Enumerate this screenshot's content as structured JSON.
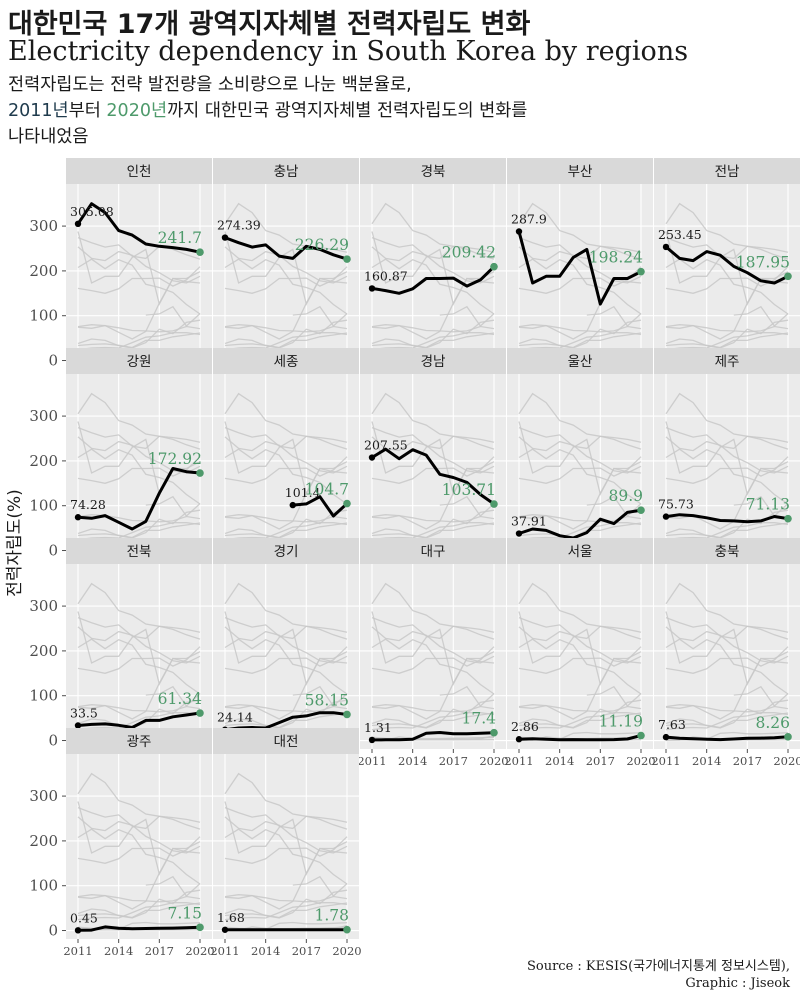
{
  "title_ko": "대한민국 17개 광역지자체별 전력자립도 변화",
  "title_en": "Electricity dependency in South Korea by regions",
  "subtitle": {
    "line1": "전력자립도는 전략 발전량을 소비량으로 나눈 백분율로,",
    "year_start": "2011년",
    "word_from": "부터",
    "year_end": "2020년",
    "line2_rest": "까지 대한민국 광역지자체별 전력자립도의 변화를",
    "line3": "나타내었음"
  },
  "caption": {
    "line1": "Source : KESIS(국가에너지통계 정보시스템),",
    "line2": "Graphic : Jiseok"
  },
  "colors": {
    "panel_bg": "#ebebeb",
    "strip_bg": "#d9d9d9",
    "grid": "#ffffff",
    "highlight_line": "#000000",
    "context_lines": "#c8c8c8",
    "end_point": "#4e9a6b",
    "end_label": "#4e9a6b"
  },
  "chart_data": {
    "type": "line",
    "facets": true,
    "ylabel": "전력자립도(%)",
    "xlabel": "",
    "x": [
      2011,
      2012,
      2013,
      2014,
      2015,
      2016,
      2017,
      2018,
      2019,
      2020
    ],
    "x_ticks": [
      2011,
      2014,
      2017,
      2020
    ],
    "y_ticks": [
      0,
      100,
      200,
      300
    ],
    "ylim": [
      -10,
      385
    ],
    "grid": true,
    "series": [
      {
        "name": "인천",
        "values": [
          305.08,
          350,
          330,
          290,
          280,
          260,
          255,
          252,
          248,
          241.7
        ],
        "first_label": "305.08",
        "last_label": "241.7"
      },
      {
        "name": "충남",
        "values": [
          274.39,
          263,
          253,
          258,
          233,
          228,
          255,
          248,
          236,
          226.29
        ],
        "first_label": "274.39",
        "last_label": "226.29"
      },
      {
        "name": "경북",
        "values": [
          160.87,
          156,
          150,
          160,
          183,
          183,
          184,
          166,
          180,
          209.42
        ],
        "first_label": "160.87",
        "last_label": "209.42"
      },
      {
        "name": "부산",
        "values": [
          287.9,
          173,
          188,
          188,
          230,
          248,
          126,
          183,
          183,
          198.24
        ],
        "first_label": "287.9",
        "last_label": "198.24"
      },
      {
        "name": "전남",
        "values": [
          253.45,
          228,
          223,
          243,
          235,
          210,
          196,
          178,
          173,
          187.95
        ],
        "first_label": "253.45",
        "last_label": "187.95"
      },
      {
        "name": "강원",
        "values": [
          74.28,
          72,
          78,
          63,
          48,
          65,
          128,
          183,
          176,
          172.92
        ],
        "first_label": "74.28",
        "last_label": "172.92"
      },
      {
        "name": "세종",
        "values": [
          null,
          null,
          null,
          null,
          null,
          101.4,
          104,
          120,
          77,
          104.7
        ],
        "first_label": "101.4",
        "last_label": "104.7"
      },
      {
        "name": "경남",
        "values": [
          207.55,
          226,
          205,
          225,
          213,
          170,
          163,
          152,
          125,
          103.71
        ],
        "first_label": "207.55",
        "last_label": "103.71"
      },
      {
        "name": "울산",
        "values": [
          37.91,
          48,
          45,
          33,
          28,
          40,
          70,
          60,
          85,
          89.9
        ],
        "first_label": "37.91",
        "last_label": "89.9"
      },
      {
        "name": "제주",
        "values": [
          75.73,
          80,
          78,
          73,
          67,
          66,
          64,
          66,
          76,
          71.13
        ],
        "first_label": "75.73",
        "last_label": "71.13"
      },
      {
        "name": "전북",
        "values": [
          33.5,
          36,
          37,
          34,
          29,
          45,
          45,
          53,
          57,
          61.34
        ],
        "first_label": "33.5",
        "last_label": "61.34"
      },
      {
        "name": "경기",
        "values": [
          24.14,
          28,
          29,
          28,
          40,
          52,
          55,
          62,
          62,
          58.15
        ],
        "first_label": "24.14",
        "last_label": "58.15"
      },
      {
        "name": "대구",
        "values": [
          1.31,
          1.5,
          1.8,
          3,
          16,
          18,
          15,
          15,
          16,
          17.4
        ],
        "first_label": "1.31",
        "last_label": "17.4"
      },
      {
        "name": "서울",
        "values": [
          2.86,
          4,
          3,
          1.5,
          2,
          1.8,
          1.9,
          2,
          3.5,
          11.19
        ],
        "first_label": "2.86",
        "last_label": "11.19"
      },
      {
        "name": "충북",
        "values": [
          7.63,
          5,
          4,
          3,
          2,
          3.5,
          5,
          5.5,
          6,
          8.26
        ],
        "first_label": "7.63",
        "last_label": "8.26"
      },
      {
        "name": "광주",
        "values": [
          0.45,
          1,
          8,
          5,
          4,
          4.5,
          5,
          5.5,
          6,
          7.15
        ],
        "first_label": "0.45",
        "last_label": "7.15"
      },
      {
        "name": "대전",
        "values": [
          1.68,
          1.6,
          1.6,
          1.5,
          1.6,
          1.6,
          1.7,
          1.7,
          1.7,
          1.78
        ],
        "first_label": "1.68",
        "last_label": "1.78"
      }
    ]
  }
}
